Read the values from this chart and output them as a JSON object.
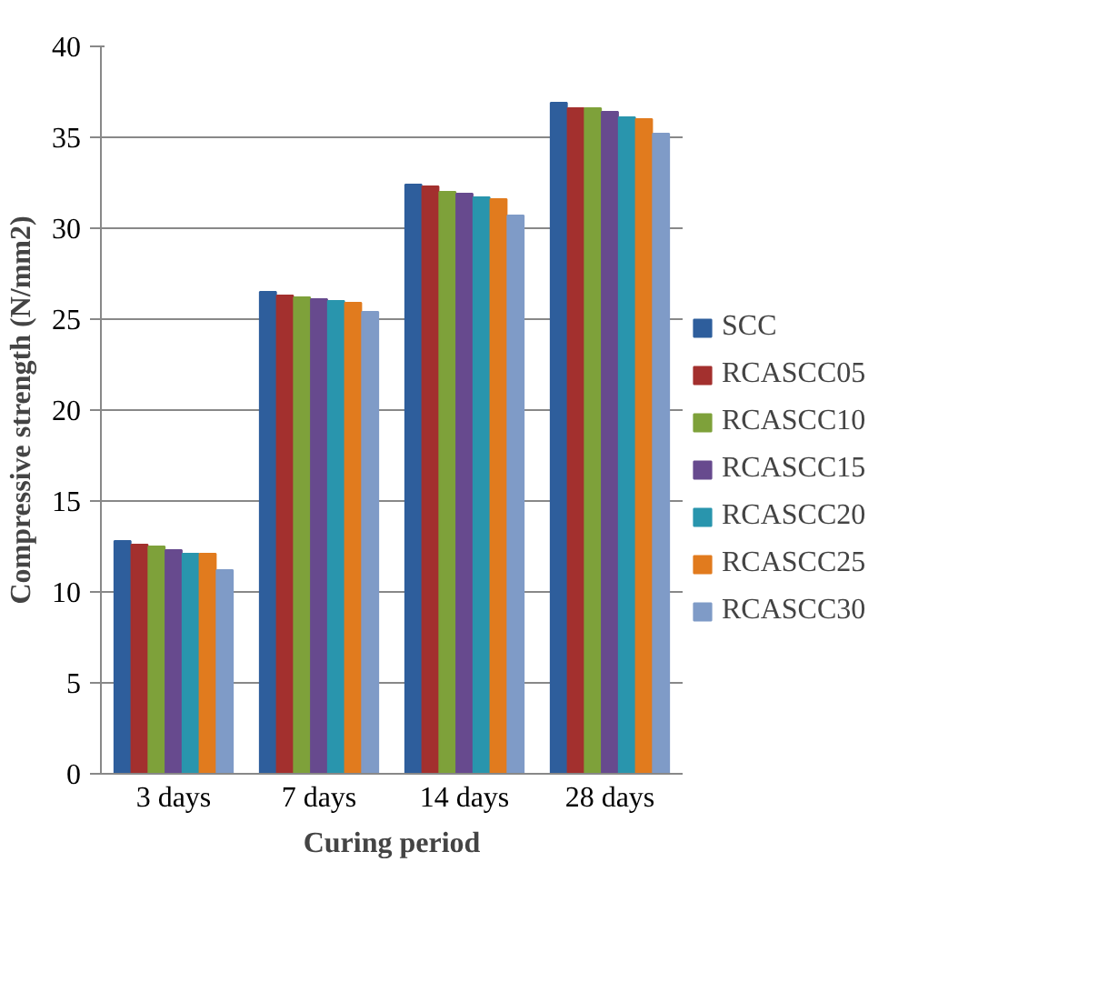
{
  "chart_data": {
    "type": "bar",
    "xlabel": "Curing period",
    "ylabel": "Compressive strength (N/mm2)",
    "categories": [
      "3 days",
      "7 days",
      "14 days",
      "28 days"
    ],
    "series": [
      {
        "name": "SCC",
        "color": "#2e5e9c",
        "values": [
          12.8,
          26.5,
          32.4,
          36.9
        ]
      },
      {
        "name": "RCASCC05",
        "color": "#a3302e",
        "values": [
          12.6,
          26.3,
          32.3,
          36.6
        ]
      },
      {
        "name": "RCASCC10",
        "color": "#7ea13a",
        "values": [
          12.5,
          26.2,
          32.0,
          36.6
        ]
      },
      {
        "name": "RCASCC15",
        "color": "#674a8e",
        "values": [
          12.3,
          26.1,
          31.9,
          36.4
        ]
      },
      {
        "name": "RCASCC20",
        "color": "#2995ad",
        "values": [
          12.1,
          26.0,
          31.7,
          36.1
        ]
      },
      {
        "name": "RCASCC25",
        "color": "#e17b1e",
        "values": [
          12.1,
          25.9,
          31.6,
          36.0
        ]
      },
      {
        "name": "RCASCC30",
        "color": "#7f9bc7",
        "values": [
          11.2,
          25.4,
          30.7,
          35.2
        ]
      }
    ],
    "ylim": [
      0,
      40
    ],
    "yticks": [
      0,
      5,
      10,
      15,
      20,
      25,
      30,
      35,
      40
    ],
    "grid": "y",
    "legend": "right"
  }
}
